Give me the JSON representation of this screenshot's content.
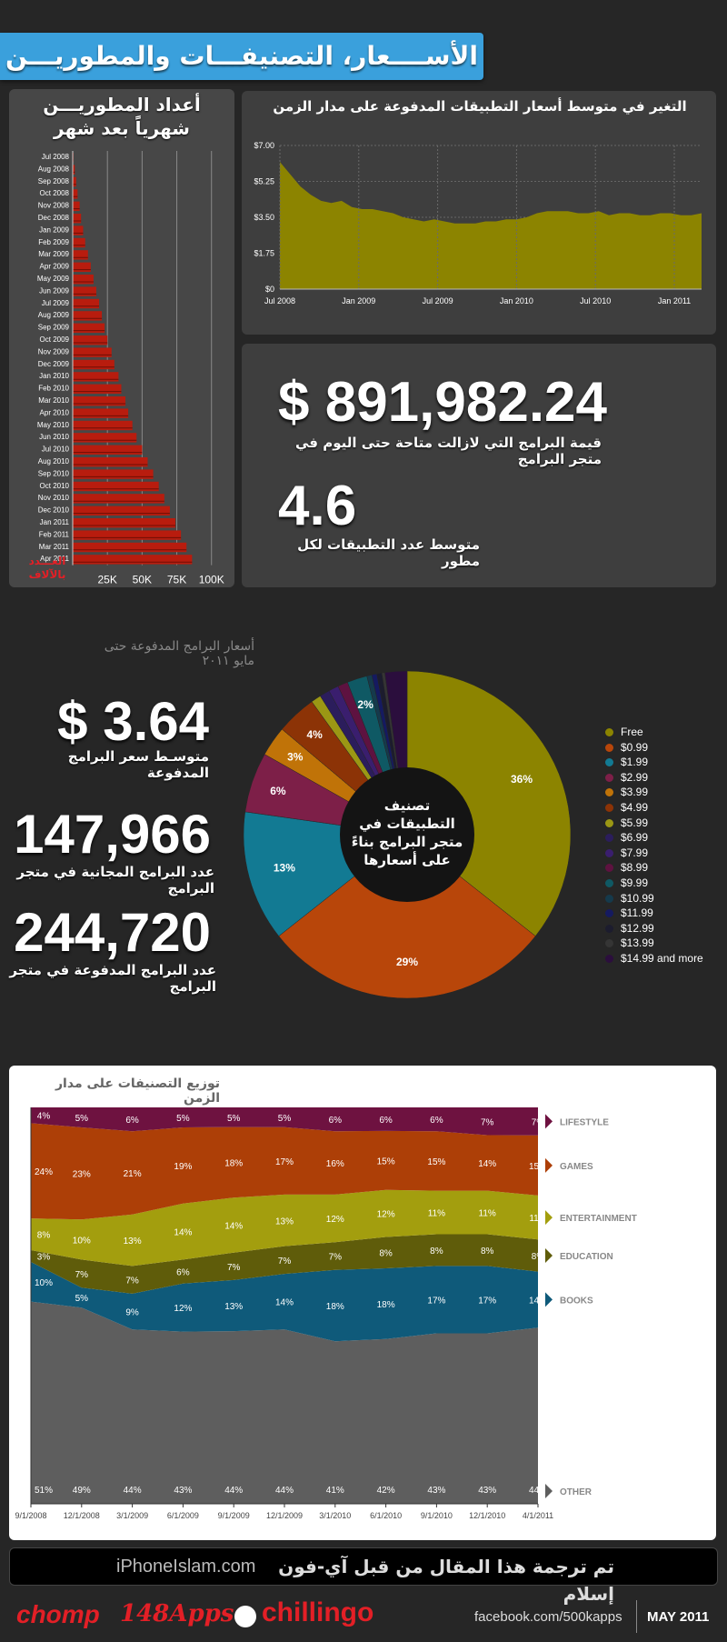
{
  "header": {
    "title": "الأســــعار، التصنيفـــات والمطوريـــن"
  },
  "developers": {
    "title_line1": "أعداد المطوريـــن",
    "title_line2": "شهرياً بعد شهر",
    "axis_label_line1": "العـــدد",
    "axis_label_line2": "بالآلاف"
  },
  "price_change": {
    "title": "التغير في متوسط أسعار التطبيقات المدفوعة على مدار الزمن"
  },
  "stats": {
    "value_label": "$ 891,982.24",
    "value_caption": "قيمة البرامج التي لازالت متاحة حتى اليوم في متجر البرامج",
    "apps_per_dev": "4.6",
    "apps_per_dev_caption": "متوسط عدد التطبيقات لكل مطور"
  },
  "paid_prices": {
    "section_title": "أسعار البرامج المدفوعة حتى مايو ٢٠١١",
    "avg_price": "$ 3.64",
    "avg_price_caption": "متوسـط سعر البرامج المدفوعة",
    "free_count": "147,966",
    "free_caption": "عدد البرامج المجانية في متجر البرامج",
    "paid_count": "244,720",
    "paid_caption": "عدد البرامج المدفوعة في متجر البرامج",
    "pie_center_line1": "تصنيف",
    "pie_center_line2": "التطبيقات في",
    "pie_center_line3": "متجر البرامج بناءً",
    "pie_center_line4": "على أسعارها"
  },
  "categories_chart": {
    "title": "توزيع التصنيفات على مدار الزمن"
  },
  "footer": {
    "site": "iPhoneIslam.com",
    "credit": "تم ترجمة هذا المقال من قبل آي-فون إسلام",
    "logo_chomp": "chomp",
    "logo_148": "148Apps",
    "logo_chillingo": "chillingo",
    "facebook": "facebook.com/500kapps",
    "date": "MAY 2011"
  },
  "colors": {
    "accent_blue": "#3aa0dc",
    "olive": "#8c8400",
    "bar_red": "#b81c0e"
  },
  "chart_data": [
    {
      "type": "bar",
      "orientation": "horizontal",
      "categories": [
        "Jul 2008",
        "Aug 2008",
        "Sep 2008",
        "Oct 2008",
        "Nov 2008",
        "Dec 2008",
        "Jan 2009",
        "Feb 2009",
        "Mar 2009",
        "Apr 2009",
        "May 2009",
        "Jun 2009",
        "Jul 2009",
        "Aug 2009",
        "Sep 2009",
        "Oct 2009",
        "Nov 2009",
        "Dec 2009",
        "Jan 2010",
        "Feb 2010",
        "Mar 2010",
        "Apr 2010",
        "May 2010",
        "Jun 2010",
        "Jul 2010",
        "Aug 2010",
        "Sep 2010",
        "Oct 2010",
        "Nov 2010",
        "Dec 2010",
        "Jan 2011",
        "Feb 2011",
        "Mar 2011",
        "Apr 2011"
      ],
      "values": [
        0.5,
        1.5,
        2.5,
        3.5,
        5,
        6,
        7.5,
        9,
        11,
        13,
        15,
        17,
        19,
        21,
        23,
        25,
        28,
        30,
        33,
        35,
        38,
        40,
        43,
        46,
        50,
        54,
        58,
        62,
        66,
        70,
        74,
        78,
        82,
        86
      ],
      "xticks": [
        "25K",
        "50K",
        "75K",
        "100K"
      ],
      "xtick_values": [
        25,
        50,
        75,
        100
      ],
      "xlim": [
        0,
        110
      ]
    },
    {
      "type": "area",
      "title": "التغير في متوسط أسعار التطبيقات المدفوعة على مدار الزمن",
      "x_labels": [
        "Jul 2008",
        "Jan 2009",
        "Jul 2009",
        "Jan 2010",
        "Jul 2010",
        "Jan 2011"
      ],
      "y_ticks": [
        "$7.00",
        "$5.25",
        "$3.50",
        "$1.75",
        "$0"
      ],
      "ylim": [
        0,
        7
      ],
      "values": [
        6.2,
        5.6,
        5.0,
        4.6,
        4.3,
        4.2,
        4.3,
        4.0,
        3.9,
        3.9,
        3.8,
        3.7,
        3.5,
        3.4,
        3.3,
        3.4,
        3.3,
        3.2,
        3.2,
        3.2,
        3.3,
        3.3,
        3.4,
        3.4,
        3.5,
        3.7,
        3.8,
        3.8,
        3.8,
        3.7,
        3.7,
        3.8,
        3.6,
        3.7,
        3.7,
        3.6,
        3.6,
        3.7,
        3.7,
        3.6,
        3.6,
        3.7
      ]
    },
    {
      "type": "pie",
      "categories": [
        "Free",
        "$0.99",
        "$1.99",
        "$2.99",
        "$3.99",
        "$4.99",
        "$5.99",
        "$6.99",
        "$7.99",
        "$8.99",
        "$9.99",
        "$10.99",
        "$11.99",
        "$12.99",
        "$13.99",
        "$14.99 and more"
      ],
      "values": [
        36,
        29,
        13,
        6,
        3,
        4,
        1,
        1,
        1,
        1,
        2,
        0.5,
        0.5,
        0.5,
        0.3,
        2.2
      ],
      "value_labels": [
        "36%",
        "29%",
        "13%",
        "6%",
        "3%",
        "4%",
        "",
        "",
        "",
        "",
        "2%",
        "",
        "",
        "",
        "",
        ""
      ],
      "colors": [
        "#8c8400",
        "#b8460a",
        "#127a93",
        "#7d1f48",
        "#c07308",
        "#8c3306",
        "#9b9714",
        "#2b1d5c",
        "#3a1e6e",
        "#5e1240",
        "#0f5964",
        "#153a4c",
        "#151a60",
        "#1c1c2e",
        "#353535",
        "#2b0e3d"
      ]
    },
    {
      "type": "area",
      "stacked": true,
      "percent": true,
      "title": "توزيع التصنيفات على مدار الزمن",
      "x": [
        "9/1/2008",
        "12/1/2008",
        "3/1/2009",
        "6/1/2009",
        "9/1/2009",
        "12/1/2009",
        "3/1/2010",
        "6/1/2010",
        "9/1/2010",
        "12/1/2010",
        "4/1/2011"
      ],
      "series": [
        {
          "name": "OTHER",
          "color": "#5e5e5e",
          "values": [
            51,
            49,
            44,
            43,
            44,
            44,
            41,
            42,
            43,
            43,
            44
          ]
        },
        {
          "name": "BOOKS",
          "color": "#0f5a7a",
          "values": [
            10,
            5,
            9,
            12,
            13,
            14,
            18,
            18,
            17,
            17,
            14
          ]
        },
        {
          "name": "EDUCATION",
          "color": "#5f5c0a",
          "values": [
            3,
            7,
            7,
            6,
            7,
            7,
            7,
            8,
            8,
            8,
            8
          ]
        },
        {
          "name": "ENTERTAINMENT",
          "color": "#a39e0e",
          "values": [
            8,
            10,
            13,
            14,
            14,
            13,
            12,
            12,
            11,
            11,
            11
          ]
        },
        {
          "name": "GAMES",
          "color": "#ad3f07",
          "values": [
            24,
            23,
            21,
            19,
            18,
            17,
            16,
            15,
            15,
            14,
            15
          ]
        },
        {
          "name": "LIFESTYLE",
          "color": "#6e1240",
          "values": [
            4,
            5,
            6,
            5,
            5,
            5,
            6,
            6,
            6,
            7,
            7
          ]
        }
      ]
    }
  ]
}
